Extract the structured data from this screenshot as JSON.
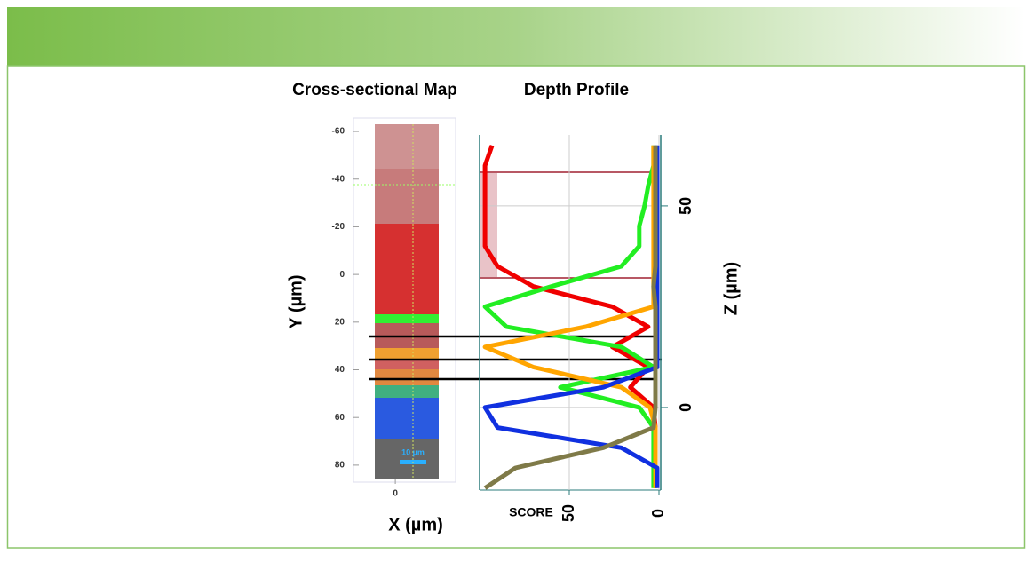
{
  "chart_data": [
    {
      "type": "image",
      "title": "Cross-sectional Map",
      "xlabel": "X (µm)",
      "ylabel": "Y (µm)",
      "xlim": [
        -8.6,
        18.2
      ],
      "xticks": [
        0
      ],
      "ylim": [
        -63,
        86
      ],
      "yticks": [
        -60,
        -40,
        -20,
        0,
        20,
        40,
        60,
        80
      ],
      "scale_bar": "10 µm"
    },
    {
      "type": "line",
      "title": "Depth Profile",
      "xlabel": "Z (µm)",
      "ylabel": "SCORE",
      "x": [
        -20,
        -15,
        -10,
        -5,
        0,
        5,
        10,
        15,
        20,
        25,
        30,
        35,
        40,
        45,
        50,
        55,
        60,
        65
      ],
      "xlim": [
        -20.5,
        67.6
      ],
      "xticks": [
        0,
        50
      ],
      "ylim": [
        100,
        0
      ],
      "yticks": [
        0,
        50
      ],
      "series": [
        {
          "color": "#f00000",
          "values": [
            2,
            2,
            2,
            2,
            3,
            16,
            6,
            26,
            6,
            26,
            70,
            90,
            97,
            97,
            97,
            97,
            97,
            93
          ]
        },
        {
          "color": "#22ee22",
          "values": [
            3,
            3,
            3,
            3,
            11,
            55,
            3,
            21,
            85,
            97,
            60,
            21,
            11,
            11,
            8,
            6,
            3,
            3
          ]
        },
        {
          "color": "#ffa500",
          "values": [
            2,
            2,
            2,
            2,
            5,
            21,
            70,
            97,
            41,
            3,
            3,
            3,
            3,
            3,
            3,
            3,
            3,
            3
          ]
        },
        {
          "color": "#1030e0",
          "values": [
            1,
            1,
            21,
            90,
            97,
            31,
            1,
            1,
            1,
            1,
            1,
            1,
            1,
            1,
            1,
            1,
            1,
            1
          ]
        },
        {
          "color": "#7f7a48",
          "values": [
            97,
            80,
            31,
            3,
            2,
            2,
            2,
            2,
            2,
            2,
            3,
            2,
            2,
            2,
            2,
            2,
            2,
            2
          ]
        }
      ]
    }
  ]
}
